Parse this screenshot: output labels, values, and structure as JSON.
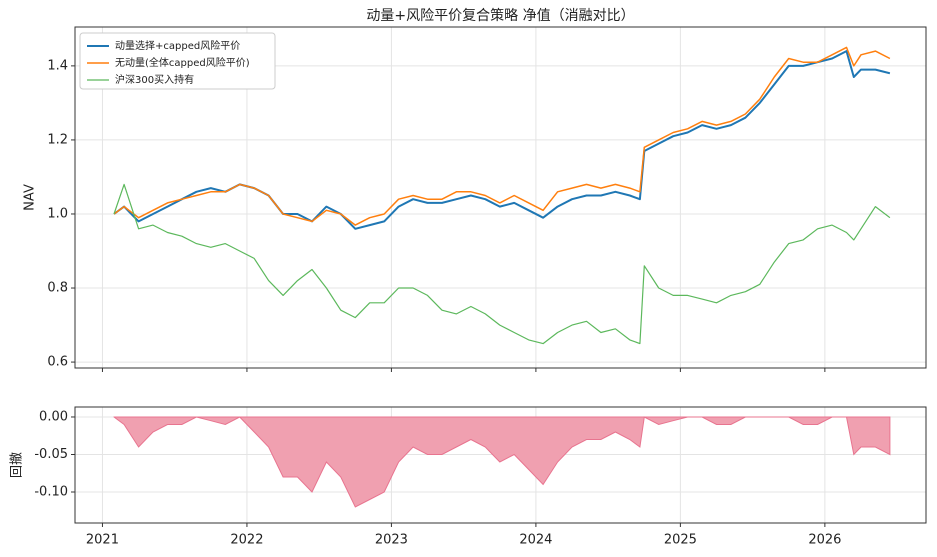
{
  "chart_data": [
    {
      "type": "line",
      "title": "动量+风险平价复合策略 净值（消融对比）",
      "y_label": "NAV",
      "x": [
        2021.08,
        2021.15,
        2021.25,
        2021.35,
        2021.45,
        2021.55,
        2021.65,
        2021.75,
        2021.85,
        2021.95,
        2022.05,
        2022.15,
        2022.25,
        2022.35,
        2022.45,
        2022.55,
        2022.65,
        2022.75,
        2022.85,
        2022.95,
        2023.05,
        2023.15,
        2023.25,
        2023.35,
        2023.45,
        2023.55,
        2023.65,
        2023.75,
        2023.85,
        2023.95,
        2024.05,
        2024.15,
        2024.25,
        2024.35,
        2024.45,
        2024.55,
        2024.65,
        2024.72,
        2024.75,
        2024.85,
        2024.95,
        2025.05,
        2025.15,
        2025.25,
        2025.35,
        2025.45,
        2025.55,
        2025.65,
        2025.75,
        2025.85,
        2025.95,
        2026.05,
        2026.15,
        2026.2,
        2026.25,
        2026.35,
        2026.45
      ],
      "series": [
        {
          "name": "动量选择+capped风险平价",
          "color": "#1f77b4",
          "width": 2,
          "values": [
            1.0,
            1.02,
            0.98,
            1.0,
            1.02,
            1.04,
            1.06,
            1.07,
            1.06,
            1.08,
            1.07,
            1.05,
            1.0,
            1.0,
            0.98,
            1.02,
            1.0,
            0.96,
            0.97,
            0.98,
            1.02,
            1.04,
            1.03,
            1.03,
            1.04,
            1.05,
            1.04,
            1.02,
            1.03,
            1.01,
            0.99,
            1.02,
            1.04,
            1.05,
            1.05,
            1.06,
            1.05,
            1.04,
            1.17,
            1.19,
            1.21,
            1.22,
            1.24,
            1.23,
            1.24,
            1.26,
            1.3,
            1.35,
            1.4,
            1.4,
            1.41,
            1.42,
            1.44,
            1.37,
            1.39,
            1.39,
            1.38
          ]
        },
        {
          "name": "无动量(全体capped风险平价)",
          "color": "#ff7f0e",
          "width": 1.5,
          "values": [
            1.0,
            1.02,
            0.99,
            1.01,
            1.03,
            1.04,
            1.05,
            1.06,
            1.06,
            1.08,
            1.07,
            1.05,
            1.0,
            0.99,
            0.98,
            1.01,
            1.0,
            0.97,
            0.99,
            1.0,
            1.04,
            1.05,
            1.04,
            1.04,
            1.06,
            1.06,
            1.05,
            1.03,
            1.05,
            1.03,
            1.01,
            1.06,
            1.07,
            1.08,
            1.07,
            1.08,
            1.07,
            1.06,
            1.18,
            1.2,
            1.22,
            1.23,
            1.25,
            1.24,
            1.25,
            1.27,
            1.31,
            1.37,
            1.42,
            1.41,
            1.41,
            1.43,
            1.45,
            1.4,
            1.43,
            1.44,
            1.42
          ]
        },
        {
          "name": "沪深300买入持有",
          "color": "#5cb85c",
          "width": 1.2,
          "values": [
            1.0,
            1.08,
            0.96,
            0.97,
            0.95,
            0.94,
            0.92,
            0.91,
            0.92,
            0.9,
            0.88,
            0.82,
            0.78,
            0.82,
            0.85,
            0.8,
            0.74,
            0.72,
            0.76,
            0.76,
            0.8,
            0.8,
            0.78,
            0.74,
            0.73,
            0.75,
            0.73,
            0.7,
            0.68,
            0.66,
            0.65,
            0.68,
            0.7,
            0.71,
            0.68,
            0.69,
            0.66,
            0.65,
            0.86,
            0.8,
            0.78,
            0.78,
            0.77,
            0.76,
            0.78,
            0.79,
            0.81,
            0.87,
            0.92,
            0.93,
            0.96,
            0.97,
            0.95,
            0.93,
            0.96,
            1.02,
            0.99
          ]
        }
      ],
      "xlim": [
        2020.81,
        2026.7
      ],
      "xticks": [
        2021,
        2022,
        2023,
        2024,
        2025,
        2026
      ],
      "ylim": [
        0.584,
        1.505
      ],
      "yticks": [
        {
          "value": 0.6,
          "label": "0.6"
        },
        {
          "value": 0.8,
          "label": "0.8"
        },
        {
          "value": 1.0,
          "label": "1.0"
        },
        {
          "value": 1.2,
          "label": "1.2"
        },
        {
          "value": 1.4,
          "label": "1.4"
        }
      ],
      "grid": true,
      "legend": "upper-left"
    },
    {
      "type": "area",
      "y_label": "回撤",
      "color": "#e8748f",
      "fill": "#f0a0b0",
      "x": [
        2021.08,
        2021.15,
        2021.25,
        2021.35,
        2021.45,
        2021.55,
        2021.65,
        2021.75,
        2021.85,
        2021.95,
        2022.05,
        2022.15,
        2022.25,
        2022.35,
        2022.45,
        2022.55,
        2022.65,
        2022.75,
        2022.85,
        2022.95,
        2023.05,
        2023.15,
        2023.25,
        2023.35,
        2023.45,
        2023.55,
        2023.65,
        2023.75,
        2023.85,
        2023.95,
        2024.05,
        2024.15,
        2024.25,
        2024.35,
        2024.45,
        2024.55,
        2024.65,
        2024.72,
        2024.75,
        2024.85,
        2024.95,
        2025.05,
        2025.15,
        2025.25,
        2025.35,
        2025.45,
        2025.55,
        2025.65,
        2025.75,
        2025.85,
        2025.95,
        2026.05,
        2026.15,
        2026.2,
        2026.25,
        2026.35,
        2026.45
      ],
      "values": [
        0,
        -0.01,
        -0.04,
        -0.02,
        -0.01,
        -0.01,
        0,
        -0.005,
        -0.01,
        0,
        -0.02,
        -0.04,
        -0.08,
        -0.08,
        -0.1,
        -0.06,
        -0.08,
        -0.12,
        -0.11,
        -0.1,
        -0.06,
        -0.04,
        -0.05,
        -0.05,
        -0.04,
        -0.03,
        -0.04,
        -0.06,
        -0.05,
        -0.07,
        -0.09,
        -0.06,
        -0.04,
        -0.03,
        -0.03,
        -0.02,
        -0.03,
        -0.04,
        0,
        -0.01,
        -0.005,
        0,
        0,
        -0.01,
        -0.01,
        0,
        0,
        0,
        0,
        -0.01,
        -0.01,
        0,
        0,
        -0.05,
        -0.04,
        -0.04,
        -0.05
      ],
      "xlim": [
        2020.81,
        2026.7
      ],
      "xticks": [
        2021,
        2022,
        2023,
        2024,
        2025,
        2026
      ],
      "ylim": [
        -0.1413,
        0.0133
      ],
      "yticks": [
        {
          "value": -0.1,
          "label": "-0.10"
        },
        {
          "value": -0.05,
          "label": "-0.05"
        },
        {
          "value": 0,
          "label": "0.00"
        }
      ],
      "grid": true
    }
  ]
}
